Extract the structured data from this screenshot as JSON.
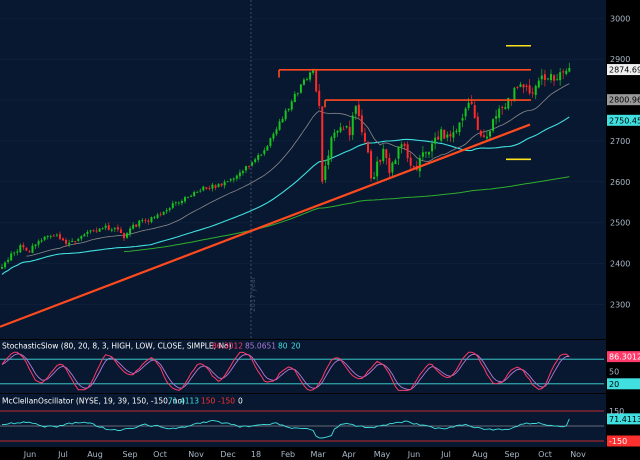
{
  "chart_data": [
    {
      "type": "candlestick",
      "ylim": [
        2215,
        3045
      ],
      "yticks": [
        2300,
        2400,
        2500,
        2600,
        2700,
        2800,
        2900,
        3000
      ],
      "months": [
        "Jun",
        "Jul",
        "Aug",
        "Sep",
        "Oct",
        "Nov",
        "Dec",
        "18",
        "Feb",
        "Mar",
        "Apr",
        "May",
        "Jun",
        "Jul",
        "Aug",
        "Sep",
        "Oct",
        "Nov"
      ],
      "year_label": "2017 year",
      "price_path": [
        [
          0,
          2395
        ],
        [
          3,
          2420
        ],
        [
          6,
          2440
        ],
        [
          9,
          2432
        ],
        [
          12,
          2450
        ],
        [
          15,
          2468
        ],
        [
          18,
          2470
        ],
        [
          21,
          2445
        ],
        [
          24,
          2455
        ],
        [
          27,
          2475
        ],
        [
          30,
          2480
        ],
        [
          33,
          2490
        ],
        [
          36,
          2485
        ],
        [
          39,
          2478
        ],
        [
          40,
          2465
        ],
        [
          42,
          2485
        ],
        [
          45,
          2500
        ],
        [
          48,
          2505
        ],
        [
          51,
          2515
        ],
        [
          54,
          2530
        ],
        [
          57,
          2550
        ],
        [
          60,
          2558
        ],
        [
          63,
          2572
        ],
        [
          66,
          2585
        ],
        [
          69,
          2588
        ],
        [
          72,
          2595
        ],
        [
          75,
          2605
        ],
        [
          78,
          2625
        ],
        [
          81,
          2640
        ],
        [
          84,
          2660
        ],
        [
          87,
          2690
        ],
        [
          90,
          2730
        ],
        [
          93,
          2770
        ],
        [
          96,
          2810
        ],
        [
          99,
          2845
        ],
        [
          102,
          2872
        ],
        [
          104,
          2780
        ],
        [
          105,
          2610
        ],
        [
          106,
          2640
        ],
        [
          108,
          2710
        ],
        [
          111,
          2745
        ],
        [
          114,
          2720
        ],
        [
          116,
          2790
        ],
        [
          118,
          2730
        ],
        [
          120,
          2660
        ],
        [
          121,
          2600
        ],
        [
          123,
          2640
        ],
        [
          125,
          2680
        ],
        [
          127,
          2620
        ],
        [
          129,
          2660
        ],
        [
          131,
          2700
        ],
        [
          134,
          2650
        ],
        [
          136,
          2640
        ],
        [
          138,
          2670
        ],
        [
          141,
          2690
        ],
        [
          144,
          2720
        ],
        [
          147,
          2700
        ],
        [
          150,
          2745
        ],
        [
          152,
          2770
        ],
        [
          153,
          2800
        ],
        [
          155,
          2760
        ],
        [
          157,
          2710
        ],
        [
          159,
          2720
        ],
        [
          162,
          2760
        ],
        [
          165,
          2790
        ],
        [
          168,
          2820
        ],
        [
          171,
          2840
        ],
        [
          174,
          2820
        ],
        [
          177,
          2850
        ],
        [
          180,
          2860
        ],
        [
          182,
          2850
        ],
        [
          184,
          2870
        ],
        [
          186,
          2875
        ]
      ],
      "tags": [
        {
          "value": 2874.69,
          "label": "2874.69",
          "color": "#f0f0f0",
          "text_color": "#000000"
        },
        {
          "value": 2800.96,
          "label": "2800.96",
          "color": "#9a9a9a",
          "text_color": "#000000"
        },
        {
          "value": 2750.45,
          "label": "2750.45",
          "color": "#40e0e0",
          "text_color": "#000000"
        }
      ],
      "colors": {
        "up": "#19c41f",
        "down": "#ff2a2a",
        "trend": "#ff4a1f",
        "resistance": "#ff4a1f",
        "yellow": "#ffe21f",
        "sma_gray": "#8a8a8a",
        "sma_cyan": "#40e0e0",
        "sma_green": "#2fae2f"
      }
    },
    {
      "type": "line",
      "name": "StochasticSlow (80, 20, 8, 3, HIGH, LOW, CLOSE, SIMPLE, No)",
      "ylim": [
        0,
        100
      ],
      "values_label": [
        "86.3012",
        "85.0651",
        "80",
        "20"
      ],
      "levels": [
        80,
        20
      ],
      "tags": [
        {
          "value": 86.3012,
          "label": "86.3012",
          "color": "#ff3a6a",
          "text_color": "#ffffff"
        },
        {
          "value": 50,
          "label": "50",
          "color": "none",
          "text_color": "#a8b8c8"
        },
        {
          "value": 20,
          "label": "20",
          "color": "#40e0e0",
          "text_color": "#000000"
        }
      ],
      "colors": {
        "k": "#ff3a6a",
        "d": "#b07ad8",
        "level": "#40e0e0"
      }
    },
    {
      "type": "line",
      "name": "McClellanOscillator (NYSE, 19, 39, 150, -150, no)",
      "ylim": [
        -200,
        200
      ],
      "values_label": [
        "71.4113",
        "150",
        "-150",
        "0"
      ],
      "levels": [
        150,
        -150,
        0
      ],
      "tags": [
        {
          "value": 71.4113,
          "label": "71.4113",
          "color": "#40e0e0",
          "text_color": "#000000"
        },
        {
          "value": 150,
          "label": "150",
          "color": "none",
          "text_color": "#a8b8c8"
        },
        {
          "value": -150,
          "label": "-150",
          "color": "#ff3030",
          "text_color": "#ffffff"
        }
      ],
      "colors": {
        "line": "#40e0e0",
        "hi": "#ff3030",
        "lo": "#ff3030"
      }
    }
  ]
}
